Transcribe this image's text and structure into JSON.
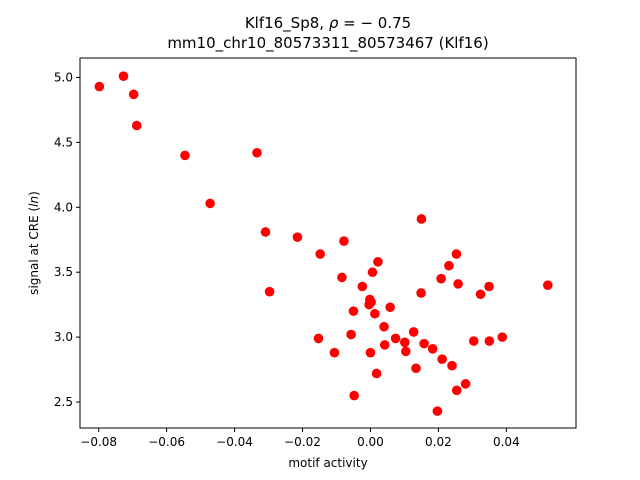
{
  "chart_data": {
    "type": "scatter",
    "title_line1_prefix": "Klf16_Sp8, ",
    "title_rho_symbol": "ρ",
    "title_rho_value": " = − 0.75",
    "title_line2": "mm10_chr10_80573311_80573467 (Klf16)",
    "xlabel": "motif activity",
    "ylabel_prefix": "signal at CRE (",
    "ylabel_italic": "ln",
    "ylabel_suffix": ")",
    "xlim": [
      -0.0855,
      0.0605
    ],
    "ylim": [
      2.3,
      5.15
    ],
    "xticks": [
      -0.08,
      -0.06,
      -0.04,
      -0.02,
      0.0,
      0.02,
      0.04
    ],
    "xtick_labels": [
      "−0.08",
      "−0.06",
      "−0.04",
      "−0.02",
      "0.00",
      "0.02",
      "0.04"
    ],
    "yticks": [
      2.5,
      3.0,
      3.5,
      4.0,
      4.5,
      5.0
    ],
    "ytick_labels": [
      "2.5",
      "3.0",
      "3.5",
      "4.0",
      "4.5",
      "5.0"
    ],
    "marker_color": "#ff0000",
    "grid": false,
    "x": [
      -0.0798,
      -0.0727,
      -0.0697,
      -0.0688,
      -0.0546,
      -0.0472,
      -0.0334,
      -0.0309,
      -0.0297,
      -0.0215,
      -0.0148,
      -0.0153,
      -0.0106,
      -0.0084,
      -0.0078,
      -0.0057,
      -0.005,
      -0.0048,
      -0.0024,
      -0.0004,
      -0.0002,
      0.0,
      0.0002,
      0.0006,
      0.0013,
      0.0018,
      0.0022,
      0.004,
      0.0042,
      0.0058,
      0.0074,
      0.0101,
      0.0104,
      0.0127,
      0.0134,
      0.0149,
      0.015,
      0.0158,
      0.0183,
      0.0197,
      0.0208,
      0.0211,
      0.0231,
      0.024,
      0.0253,
      0.0254,
      0.0258,
      0.028,
      0.0304,
      0.0324,
      0.0349,
      0.035,
      0.0388,
      0.0522
    ],
    "y": [
      4.93,
      5.01,
      4.87,
      4.63,
      4.4,
      4.03,
      4.42,
      3.81,
      3.35,
      3.77,
      3.64,
      2.99,
      2.88,
      3.46,
      3.74,
      3.02,
      3.2,
      2.55,
      3.39,
      3.25,
      3.29,
      2.88,
      3.27,
      3.5,
      3.18,
      2.72,
      3.58,
      3.08,
      2.94,
      3.23,
      2.99,
      2.96,
      2.89,
      3.04,
      2.76,
      3.34,
      3.91,
      2.95,
      2.91,
      2.43,
      3.45,
      2.83,
      3.55,
      2.78,
      3.64,
      2.59,
      3.41,
      2.64,
      2.97,
      3.33,
      3.39,
      2.97,
      3.0,
      3.4
    ]
  }
}
